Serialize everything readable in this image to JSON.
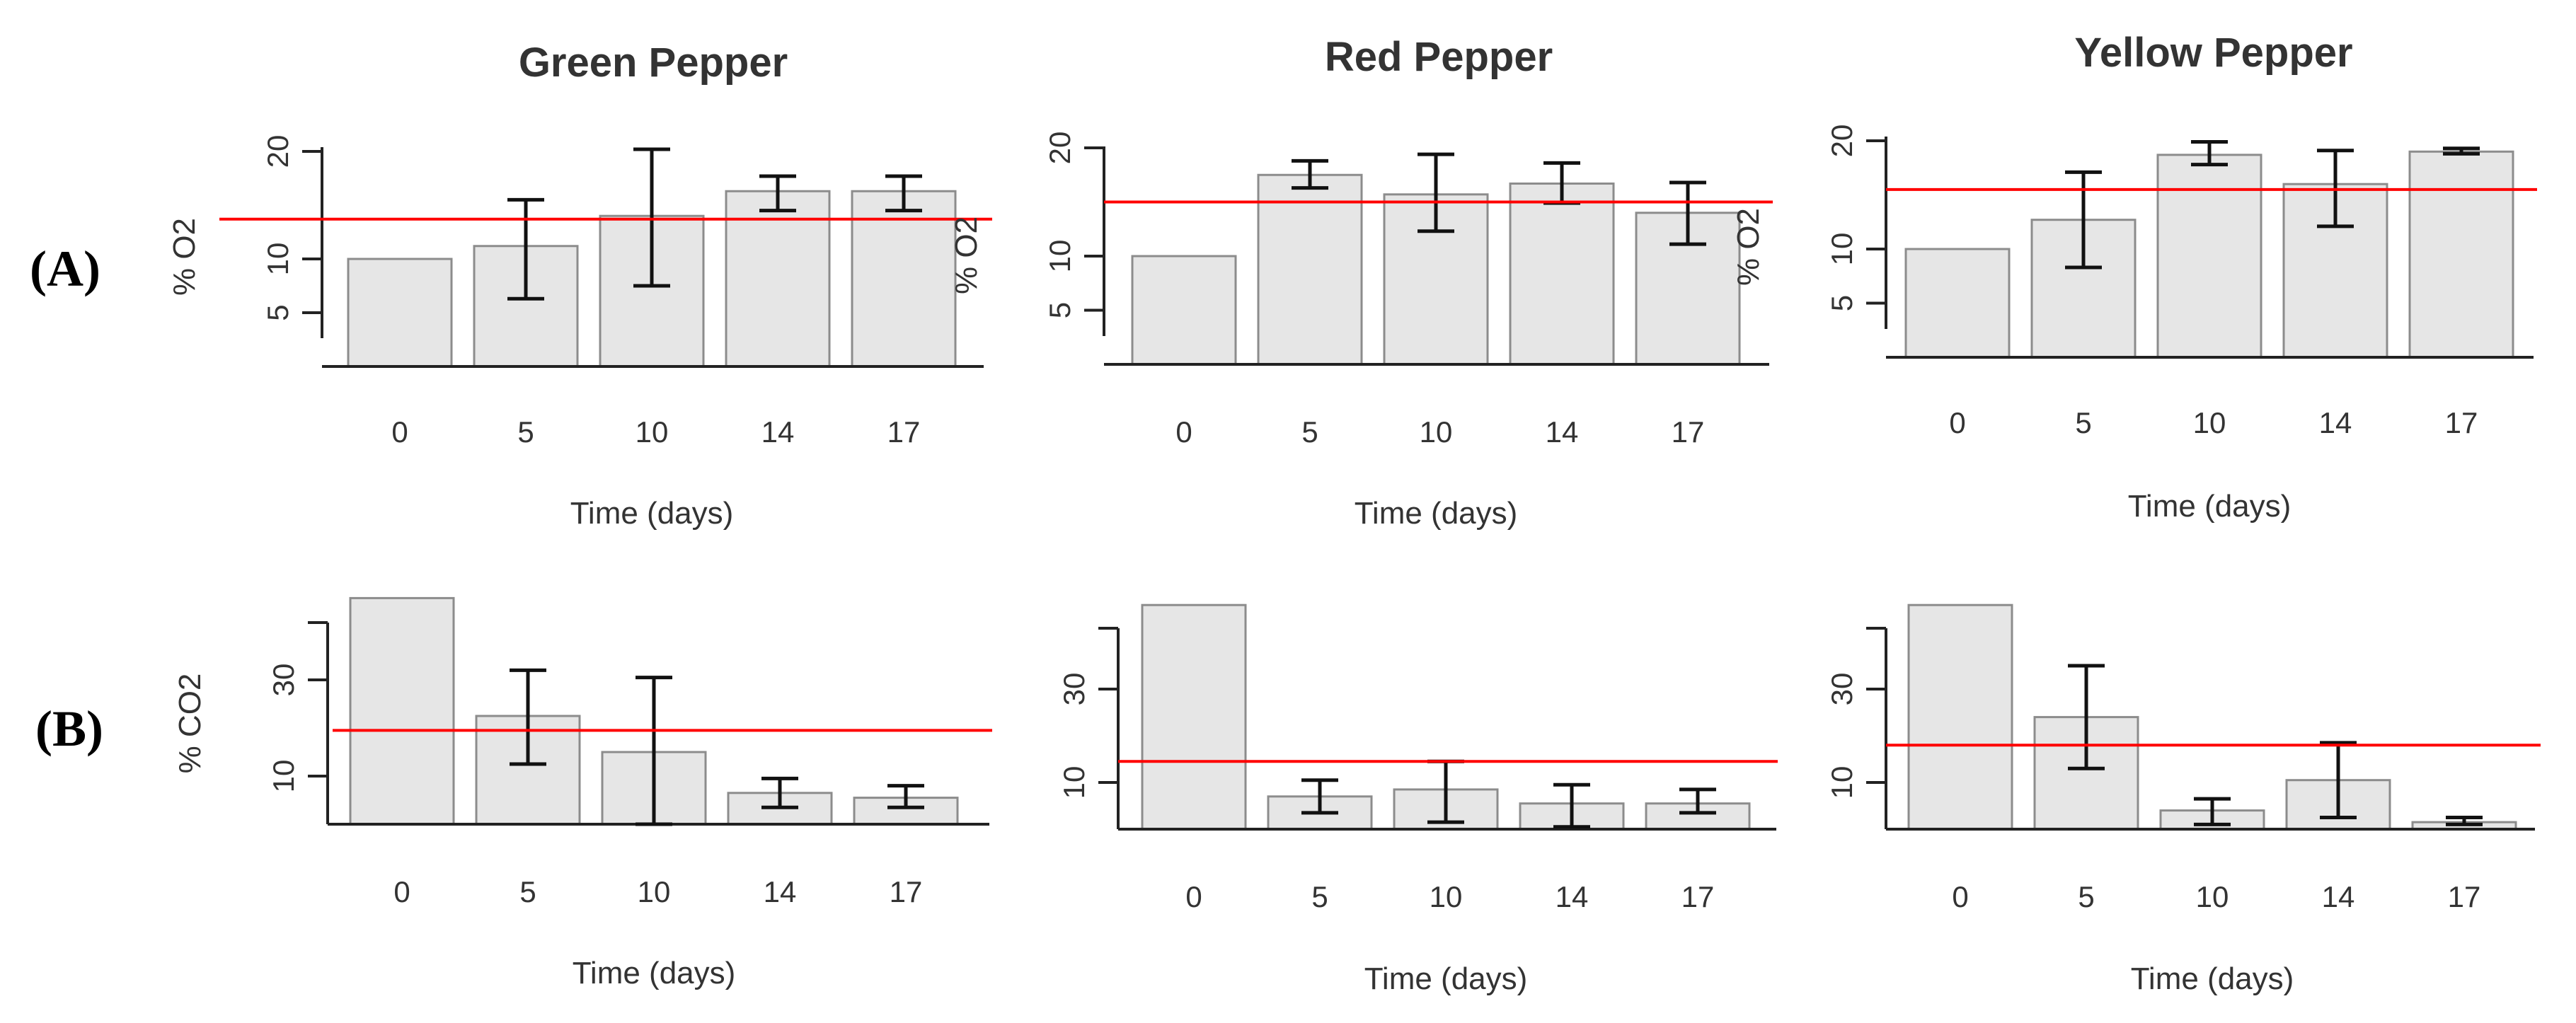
{
  "row_labels": [
    "(A)",
    "(B)"
  ],
  "chart_data": [
    {
      "type": "bar",
      "title": "Green Pepper",
      "xlabel": "Time (days)",
      "ylabel": "% O2",
      "categories": [
        "0",
        "5",
        "10",
        "14",
        "17"
      ],
      "values": [
        10,
        11.2,
        14,
        16.3,
        16.3
      ],
      "error_low": [
        10,
        6.3,
        7.5,
        14.5,
        14.5
      ],
      "error_high": [
        10,
        15.5,
        20.2,
        17.7,
        17.7
      ],
      "yticks": [
        "5",
        "10",
        "20"
      ],
      "ylim": [
        0,
        20
      ],
      "reference_line": 13.7,
      "reference_line_color": "#ff0000",
      "bar_color": "#e6e6e6"
    },
    {
      "type": "bar",
      "title": "Red Pepper",
      "xlabel": "Time (days)",
      "ylabel": "% O2",
      "categories": [
        "0",
        "5",
        "10",
        "14",
        "17"
      ],
      "values": [
        10,
        17.5,
        15.7,
        16.7,
        14
      ],
      "error_low": [
        10,
        16.3,
        12.3,
        14.9,
        11.1
      ],
      "error_high": [
        10,
        18.8,
        19.4,
        18.6,
        16.8
      ],
      "yticks": [
        "5",
        "10",
        "20"
      ],
      "ylim": [
        0,
        20
      ],
      "reference_line": 15,
      "reference_line_color": "#ff0000",
      "bar_color": "#e6e6e6"
    },
    {
      "type": "bar",
      "title": "Yellow Pepper",
      "xlabel": "Time (days)",
      "ylabel": "% O2",
      "categories": [
        "0",
        "5",
        "10",
        "14",
        "17"
      ],
      "values": [
        10,
        12.7,
        18.7,
        16,
        19
      ],
      "error_low": [
        10,
        8.3,
        17.8,
        12.1,
        18.8
      ],
      "error_high": [
        10,
        17.1,
        19.9,
        19.1,
        19.3
      ],
      "yticks": [
        "5",
        "10",
        "20"
      ],
      "ylim": [
        0,
        20
      ],
      "reference_line": 15.5,
      "reference_line_color": "#ff0000",
      "bar_color": "#e6e6e6"
    },
    {
      "type": "bar",
      "title": "",
      "xlabel": "Time (days)",
      "ylabel": "% CO2",
      "categories": [
        "0",
        "5",
        "10",
        "14",
        "17"
      ],
      "values": [
        47,
        22.5,
        15,
        6.5,
        5.5
      ],
      "error_low": [
        47,
        12.5,
        0,
        3.5,
        3.5
      ],
      "error_high": [
        47,
        32,
        30.5,
        9.5,
        8
      ],
      "yticks": [
        "10",
        "30"
      ],
      "ylim": [
        0,
        47
      ],
      "reference_line": 19.5,
      "reference_line_color": "#ff0000",
      "bar_color": "#e6e6e6"
    },
    {
      "type": "bar",
      "title": "",
      "xlabel": "Time (days)",
      "ylabel": "",
      "categories": [
        "0",
        "5",
        "10",
        "14",
        "17"
      ],
      "values": [
        48,
        7,
        8.5,
        5.5,
        5.5
      ],
      "error_low": [
        48,
        3.5,
        1.5,
        0.5,
        3.5
      ],
      "error_high": [
        48,
        10.5,
        14.5,
        9.5,
        8.5
      ],
      "yticks": [
        "10",
        "30"
      ],
      "ylim": [
        0,
        48
      ],
      "reference_line": 14.5,
      "reference_line_color": "#ff0000",
      "bar_color": "#e6e6e6"
    },
    {
      "type": "bar",
      "title": "",
      "xlabel": "Time (days)",
      "ylabel": "",
      "categories": [
        "0",
        "5",
        "10",
        "14",
        "17"
      ],
      "values": [
        48,
        24,
        4,
        10.5,
        1.5
      ],
      "error_low": [
        48,
        13,
        1,
        2.5,
        1
      ],
      "error_high": [
        48,
        35,
        6.5,
        18.5,
        2.5
      ],
      "yticks": [
        "10",
        "30"
      ],
      "ylim": [
        0,
        48
      ],
      "reference_line": 18,
      "reference_line_color": "#ff0000",
      "bar_color": "#e6e6e6"
    }
  ]
}
